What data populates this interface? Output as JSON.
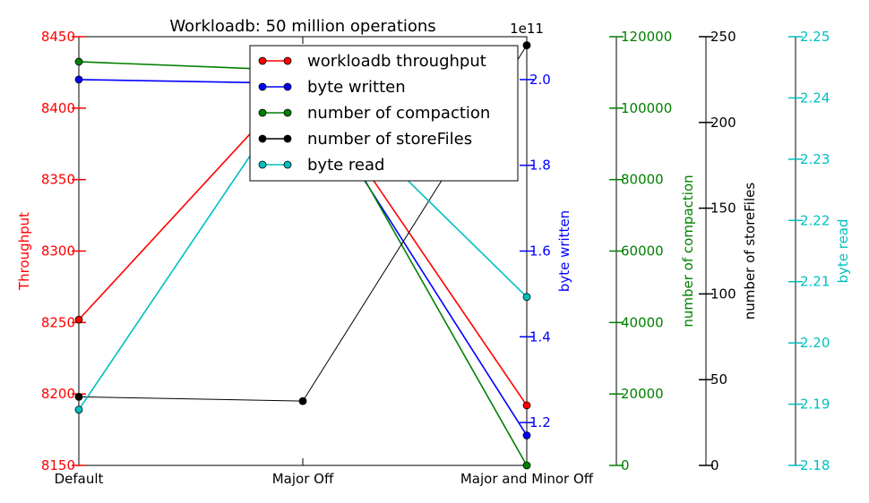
{
  "chart_data": {
    "type": "line",
    "title": "Workloadb: 50 million operations",
    "categories": [
      "Default",
      "Major Off",
      "Major and Minor Off"
    ],
    "series": [
      {
        "name": "workloadb throughput",
        "axis": "throughput",
        "color": "#ff0000",
        "values": [
          8252,
          8422,
          8192
        ]
      },
      {
        "name": "byte written",
        "axis": "byte_written",
        "color": "#0000ff",
        "values": [
          200000000000.0,
          199100000000.0,
          117000000000.0
        ]
      },
      {
        "name": "number of compaction",
        "axis": "compaction",
        "color": "#008000",
        "values": [
          113000,
          110500,
          0
        ]
      },
      {
        "name": "number of storeFiles",
        "axis": "storefiles",
        "color": "#000000",
        "values": [
          40,
          37.5,
          245
        ]
      },
      {
        "name": "byte read",
        "axis": "byte_read",
        "color": "#00bfbf",
        "values": [
          2.1891,
          2.2433,
          2.2075
        ]
      }
    ],
    "axes": [
      {
        "id": "throughput",
        "label": "Throughput",
        "color": "#ff0000",
        "ylim": [
          8150,
          8450
        ],
        "ticks": [
          8150,
          8200,
          8250,
          8300,
          8350,
          8400,
          8450
        ],
        "tick_labels": [
          "8150",
          "8200",
          "8250",
          "8300",
          "8350",
          "8400",
          "8450"
        ]
      },
      {
        "id": "byte_written",
        "label": "byte written",
        "color": "#0000ff",
        "ylim": [
          110000000000.0,
          210000000000.0
        ],
        "offset_text": "1e11",
        "ticks": [
          120000000000.0,
          140000000000.0,
          160000000000.0,
          180000000000.0,
          200000000000.0
        ],
        "tick_labels": [
          "1.2",
          "1.4",
          "1.6",
          "1.8",
          "2.0"
        ]
      },
      {
        "id": "compaction",
        "label": "number of compaction",
        "color": "#008000",
        "ylim": [
          0,
          120000
        ],
        "ticks": [
          0,
          20000,
          40000,
          60000,
          80000,
          100000,
          120000
        ],
        "tick_labels": [
          "0",
          "20000",
          "40000",
          "60000",
          "80000",
          "100000",
          "120000"
        ]
      },
      {
        "id": "storefiles",
        "label": "number of storeFiles",
        "color": "#000000",
        "ylim": [
          0,
          250
        ],
        "ticks": [
          0,
          50,
          100,
          150,
          200,
          250
        ],
        "tick_labels": [
          "0",
          "50",
          "100",
          "150",
          "200",
          "250"
        ]
      },
      {
        "id": "byte_read",
        "label": "byte read",
        "color": "#00bfbf",
        "ylim": [
          2.18,
          2.25
        ],
        "ticks": [
          2.18,
          2.19,
          2.2,
          2.21,
          2.22,
          2.23,
          2.24,
          2.25
        ],
        "tick_labels": [
          "2.18",
          "2.19",
          "2.20",
          "2.21",
          "2.22",
          "2.23",
          "2.24",
          "2.25"
        ]
      }
    ],
    "legend": "top-center",
    "grid": false
  }
}
